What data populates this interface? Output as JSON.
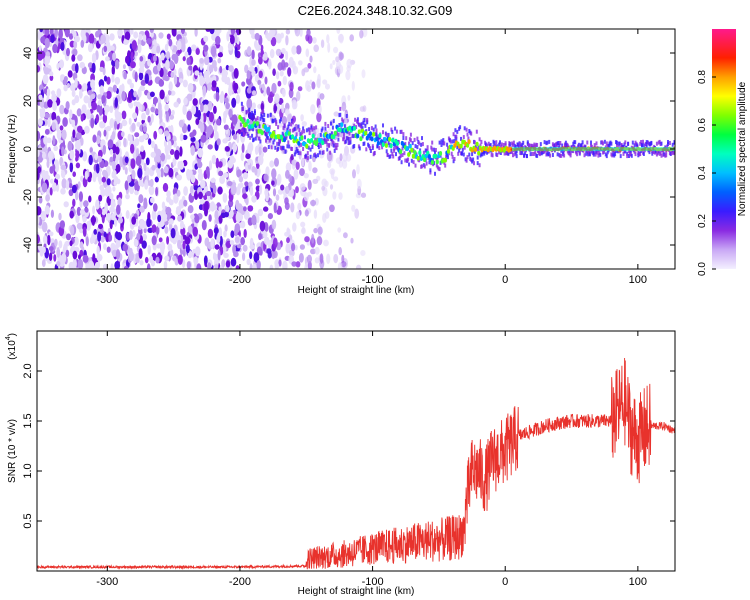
{
  "page": {
    "title": "C2E6.2024.348.10.32.G09"
  },
  "chart_data": [
    {
      "type": "heatmap",
      "name": "spectrogram",
      "xlabel": "Height of straight line (km)",
      "ylabel": "Frequency (Hz)",
      "xlim": [
        -353,
        128
      ],
      "ylim": [
        -50,
        50
      ],
      "xticks": [
        -300,
        -200,
        -100,
        0,
        100
      ],
      "yticks": [
        -40,
        -20,
        0,
        20,
        40
      ],
      "colorbar": {
        "label": "Normalized spectral amplitude",
        "range": [
          0,
          1
        ],
        "ticks": [
          0.0,
          0.2,
          0.4,
          0.6,
          0.8
        ],
        "colormap": [
          "#f0f0ff",
          "#8a2be2",
          "#0000ff",
          "#00bfff",
          "#00ff7f",
          "#7fff00",
          "#ffff00",
          "#ff8c00",
          "#ff0000",
          "#ff1493"
        ]
      },
      "description_of_signal": {
        "noise_region_x": [
          -353,
          -130
        ],
        "signal_track": [
          [
            -200,
            12
          ],
          [
            -170,
            6
          ],
          [
            -150,
            3
          ],
          [
            -130,
            5
          ],
          [
            -125,
            10
          ],
          [
            -110,
            6
          ],
          [
            -90,
            3
          ],
          [
            -70,
            -1
          ],
          [
            -55,
            -4
          ],
          [
            -45,
            -3
          ],
          [
            -38,
            3
          ],
          [
            -30,
            2
          ],
          [
            -20,
            0
          ],
          [
            0,
            0
          ],
          [
            50,
            0
          ],
          [
            100,
            0
          ],
          [
            128,
            0
          ]
        ]
      }
    },
    {
      "type": "line",
      "name": "snr",
      "xlabel": "Height of straight line (km)",
      "ylabel": "SNR (10 * v/v)",
      "yscale_label": "(x10",
      "yscale_exp": "4",
      "xlim": [
        -353,
        128
      ],
      "ylim": [
        0,
        2.4
      ],
      "xticks": [
        -300,
        -200,
        -100,
        0,
        100
      ],
      "yticks": [
        0.5,
        1.0,
        1.5,
        2.0
      ],
      "ytick_labels": [
        "0.5",
        "1.0",
        "1.5",
        "2.0"
      ],
      "color": "#e8322c",
      "series": [
        {
          "x": [
            -353,
            -300,
            -250,
            -200,
            -150,
            -120,
            -100,
            -80,
            -60,
            -45,
            -35,
            -30,
            -27,
            -25,
            -20,
            -15,
            -10,
            0,
            10,
            20,
            30,
            40,
            50,
            60,
            70,
            80,
            85,
            90,
            95,
            100,
            105,
            110,
            120,
            128
          ],
          "y": [
            0.04,
            0.04,
            0.04,
            0.04,
            0.05,
            0.1,
            0.2,
            0.25,
            0.3,
            0.3,
            0.35,
            0.6,
            0.85,
            1.0,
            1.0,
            0.9,
            1.1,
            1.2,
            1.35,
            1.4,
            1.45,
            1.48,
            1.5,
            1.5,
            1.5,
            1.5,
            1.6,
            1.7,
            1.4,
            1.3,
            1.4,
            1.45,
            1.45,
            1.4
          ]
        }
      ]
    }
  ]
}
